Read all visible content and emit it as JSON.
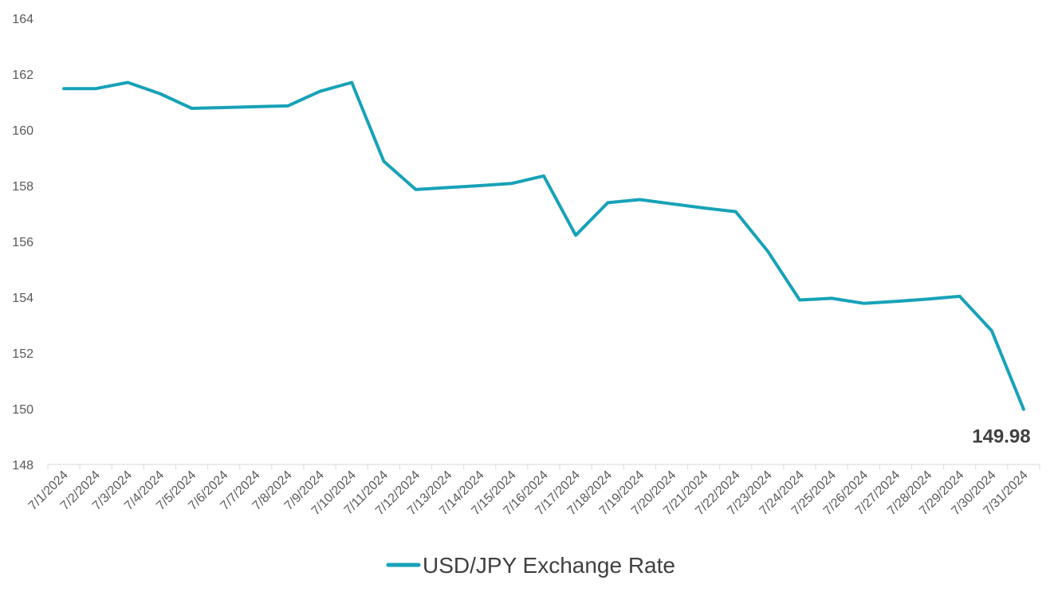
{
  "chart_data": {
    "type": "line",
    "title": "",
    "xlabel": "",
    "ylabel": "",
    "ylim": [
      148,
      164
    ],
    "y_ticks": [
      148,
      150,
      152,
      154,
      156,
      158,
      160,
      162,
      164
    ],
    "grid": false,
    "legend_position": "bottom",
    "categories": [
      "7/1/2024",
      "7/2/2024",
      "7/3/2024",
      "7/4/2024",
      "7/5/2024",
      "7/6/2024",
      "7/7/2024",
      "7/8/2024",
      "7/9/2024",
      "7/10/2024",
      "7/11/2024",
      "7/12/2024",
      "7/13/2024",
      "7/14/2024",
      "7/15/2024",
      "7/16/2024",
      "7/17/2024",
      "7/18/2024",
      "7/19/2024",
      "7/20/2024",
      "7/21/2024",
      "7/22/2024",
      "7/23/2024",
      "7/24/2024",
      "7/25/2024",
      "7/26/2024",
      "7/27/2024",
      "7/28/2024",
      "7/29/2024",
      "7/30/2024",
      "7/31/2024"
    ],
    "series": [
      {
        "name": "USD/JPY Exchange Rate",
        "color": "#17A2B8",
        "values": [
          161.48,
          161.48,
          161.7,
          161.3,
          160.77,
          160.8,
          160.83,
          160.86,
          161.38,
          161.7,
          158.87,
          157.86,
          157.93,
          158.0,
          158.08,
          158.35,
          156.22,
          157.39,
          157.5,
          157.35,
          157.2,
          157.07,
          155.65,
          153.9,
          153.96,
          153.78,
          153.85,
          153.93,
          154.03,
          152.8,
          149.98
        ]
      }
    ],
    "annotations": [
      {
        "category": "7/31/2024",
        "text": "149.98"
      }
    ]
  }
}
